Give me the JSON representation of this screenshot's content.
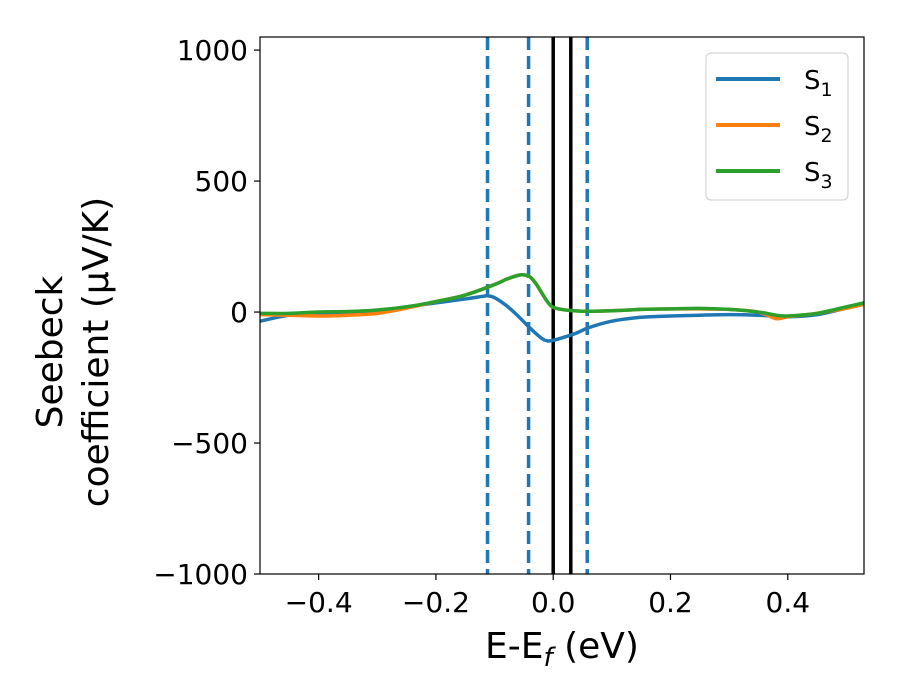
{
  "chart_data": {
    "type": "line",
    "xlabel": "E-E",
    "xlabel_sub": "f",
    "xlabel_unit": " (eV)",
    "ylabel_line1": "Seebeck",
    "ylabel_line2": "coefficient  (μV/K)",
    "xlim": [
      -0.5,
      0.53
    ],
    "ylim": [
      -1000,
      1050
    ],
    "xticks": [
      -0.4,
      -0.2,
      0.0,
      0.2,
      0.4
    ],
    "xtick_labels": [
      "−0.4",
      "−0.2",
      "0.0",
      "0.2",
      "0.4"
    ],
    "yticks": [
      -1000,
      -500,
      0,
      500,
      1000
    ],
    "ytick_labels": [
      "−1000",
      "−500",
      "0",
      "500",
      "1000"
    ],
    "legend_position": "top-right",
    "vlines_dashed": [
      -0.112,
      -0.042,
      0.058
    ],
    "vlines_solid": [
      0.0,
      0.03
    ],
    "vline_dashed_color": "#1f77b4",
    "vline_solid_color": "#000000",
    "series": [
      {
        "name": "S",
        "sub": "1",
        "color": "#1f77b4",
        "x": [
          -0.5,
          -0.45,
          -0.4,
          -0.35,
          -0.3,
          -0.25,
          -0.2,
          -0.15,
          -0.12,
          -0.112,
          -0.1,
          -0.08,
          -0.06,
          -0.04,
          -0.02,
          -0.01,
          0.0,
          0.02,
          0.04,
          0.06,
          0.1,
          0.15,
          0.2,
          0.25,
          0.3,
          0.35,
          0.4,
          0.45,
          0.5,
          0.53
        ],
        "y": [
          -35,
          -12,
          -5,
          -5,
          5,
          20,
          35,
          50,
          60,
          62,
          55,
          25,
          -15,
          -60,
          -100,
          -110,
          -108,
          -95,
          -80,
          -60,
          -35,
          -20,
          -15,
          -12,
          -10,
          -12,
          -18,
          -10,
          15,
          30
        ]
      },
      {
        "name": "S",
        "sub": "2",
        "color": "#ff7f0e",
        "x": [
          -0.5,
          -0.45,
          -0.4,
          -0.35,
          -0.3,
          -0.25,
          -0.2,
          -0.15,
          -0.1,
          -0.08,
          -0.06,
          -0.05,
          -0.04,
          -0.03,
          -0.02,
          -0.01,
          0.0,
          0.02,
          0.05,
          0.1,
          0.15,
          0.2,
          0.25,
          0.3,
          0.35,
          0.38,
          0.4,
          0.45,
          0.5,
          0.53
        ],
        "y": [
          -10,
          -12,
          -15,
          -12,
          -5,
          15,
          40,
          65,
          105,
          125,
          140,
          142,
          135,
          110,
          75,
          40,
          18,
          8,
          3,
          5,
          10,
          12,
          12,
          10,
          0,
          -25,
          -18,
          -5,
          15,
          30
        ]
      },
      {
        "name": "S",
        "sub": "3",
        "color": "#2ca02c",
        "x": [
          -0.5,
          -0.45,
          -0.4,
          -0.35,
          -0.3,
          -0.25,
          -0.2,
          -0.15,
          -0.1,
          -0.08,
          -0.06,
          -0.05,
          -0.04,
          -0.03,
          -0.02,
          -0.01,
          0.0,
          0.02,
          0.05,
          0.1,
          0.15,
          0.2,
          0.25,
          0.3,
          0.35,
          0.38,
          0.4,
          0.45,
          0.5,
          0.53
        ],
        "y": [
          -5,
          -5,
          0,
          2,
          8,
          20,
          40,
          65,
          105,
          125,
          140,
          142,
          135,
          110,
          75,
          40,
          18,
          8,
          3,
          5,
          10,
          12,
          14,
          10,
          0,
          -12,
          -15,
          -5,
          20,
          35
        ]
      }
    ]
  }
}
